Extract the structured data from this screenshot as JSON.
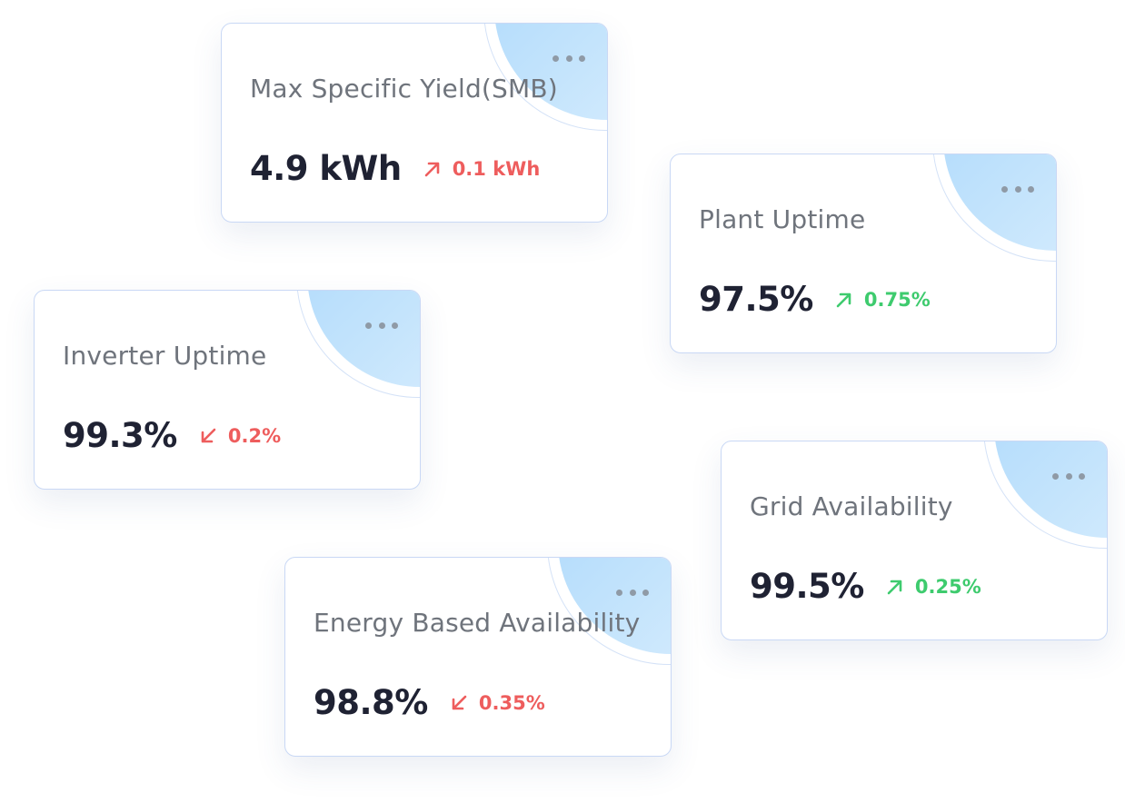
{
  "cards": [
    {
      "label": "Max Specific Yield(SMB)",
      "value": "4.9 kWh",
      "delta": "0.1 kWh",
      "trend": "up",
      "delta_color": "#ee5d5d",
      "arrow_icon": "arrow-up-right-icon"
    },
    {
      "label": "Plant Uptime",
      "value": "97.5%",
      "delta": "0.75%",
      "trend": "up",
      "delta_color": "#3ecb6e",
      "arrow_icon": "arrow-up-right-icon"
    },
    {
      "label": "Inverter Uptime",
      "value": "99.3%",
      "delta": "0.2%",
      "trend": "down",
      "delta_color": "#ee5d5d",
      "arrow_icon": "arrow-down-left-icon"
    },
    {
      "label": "Grid Availability",
      "value": "99.5%",
      "delta": "0.25%",
      "trend": "up",
      "delta_color": "#3ecb6e",
      "arrow_icon": "arrow-up-right-icon"
    },
    {
      "label": "Energy Based Availability",
      "value": "98.8%",
      "delta": "0.35%",
      "trend": "down",
      "delta_color": "#ee5d5d",
      "arrow_icon": "arrow-down-left-icon"
    }
  ],
  "colors": {
    "card_border": "#c9d8f5",
    "value_text": "#1f2233",
    "label_text": "#6f747c",
    "menu_dots": "#8f9aa6",
    "positive": "#3ecb6e",
    "negative": "#ee5d5d",
    "decor_blue": "#a9d7fb"
  },
  "menu_icon": "more-horizontal-icon"
}
